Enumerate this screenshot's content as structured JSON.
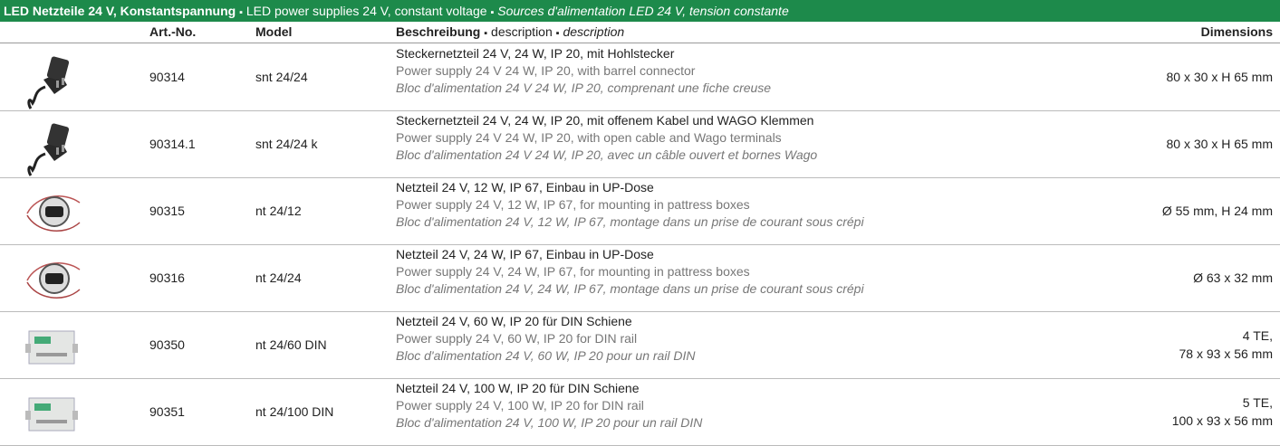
{
  "title": {
    "de": "LED Netzteile 24 V, Konstantspannung",
    "separator": "▪",
    "en": "LED power supplies 24 V, constant voltage",
    "fr": "Sources d'alimentation LED 24 V, tension constante"
  },
  "header": {
    "art_no": "Art.-No.",
    "model": "Model",
    "description": {
      "de": "Beschreibung",
      "en": "description",
      "fr": "description"
    },
    "dimensions": "Dimensions"
  },
  "table": {
    "rows": [
      {
        "art_no": "90314",
        "model": "snt 24/24",
        "de": "Steckernetzteil 24 V, 24 W, IP 20, mit Hohlstecker",
        "en": "Power supply 24 V 24 W, IP 20, with barrel connector",
        "fr": "Bloc d'alimentation 24 V 24 W, IP 20, comprenant une fiche creuse",
        "dimensions": [
          "80 x 30 x H 65 mm"
        ]
      },
      {
        "art_no": "90314.1",
        "model": "snt 24/24 k",
        "de": "Steckernetzteil 24 V, 24 W, IP 20, mit offenem Kabel und WAGO Klemmen",
        "en": "Power supply 24 V 24 W, IP 20, with open cable and Wago terminals",
        "fr": "Bloc d'alimentation 24 V 24 W, IP 20, avec un câble ouvert et bornes Wago",
        "dimensions": [
          "80 x 30 x H 65 mm"
        ]
      },
      {
        "art_no": "90315",
        "model": "nt 24/12",
        "de": "Netzteil 24 V, 12 W, IP 67, Einbau in UP-Dose",
        "en": "Power supply 24 V, 12 W, IP 67, for mounting in pattress boxes",
        "fr": "Bloc d'alimentation 24 V, 12 W, IP 67, montage dans un prise de courant sous crépi",
        "dimensions": [
          "Ø 55 mm, H 24 mm"
        ]
      },
      {
        "art_no": "90316",
        "model": "nt 24/24",
        "de": "Netzteil 24 V, 24 W, IP 67, Einbau in UP-Dose",
        "en": "Power supply 24 V, 24 W, IP 67, for mounting in pattress boxes",
        "fr": "Bloc d'alimentation 24 V, 24 W, IP 67, montage dans un prise de courant sous crépi",
        "dimensions": [
          "Ø 63 x 32 mm"
        ]
      },
      {
        "art_no": "90350",
        "model": "nt 24/60 DIN",
        "de": "Netzteil 24 V, 60 W, IP 20 für DIN Schiene",
        "en": "Power supply 24 V, 60 W, IP 20 for DIN rail",
        "fr": "Bloc d'alimentation 24 V, 60 W, IP 20 pour un rail DIN",
        "dimensions": [
          "4 TE,",
          "78 x 93 x 56 mm"
        ]
      },
      {
        "art_no": "90351",
        "model": "nt 24/100 DIN",
        "de": "Netzteil 24 V, 100 W, IP 20 für DIN Schiene",
        "en": "Power supply 24 V, 100 W, IP 20 for DIN rail",
        "fr": "Bloc d'alimentation 24 V, 100 W, IP 20 pour un rail DIN",
        "dimensions": [
          "5 TE,",
          "100 x 93 x 56 mm"
        ]
      }
    ]
  }
}
